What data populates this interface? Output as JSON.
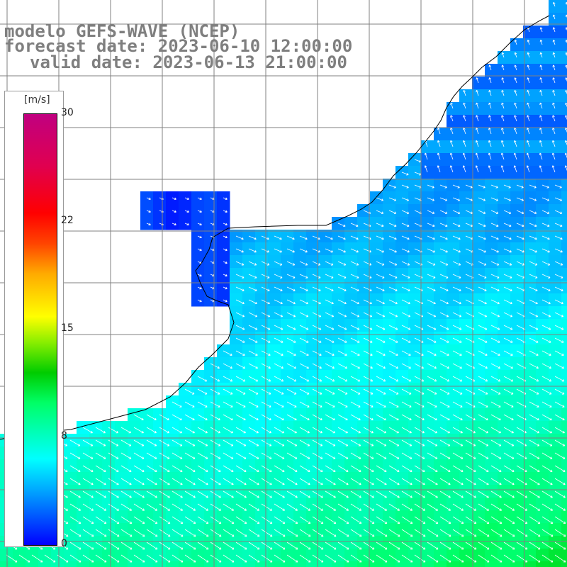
{
  "title": {
    "line1": "modelo GEFS-WAVE (NCEP)",
    "line2": "forecast date: 2023-06-10 12:00:00",
    "line3": "valid date: 2023-06-13 21:00:00"
  },
  "colorbar": {
    "unit": "[m/s]",
    "ticks": [
      "30",
      "22",
      "15",
      "8",
      "0"
    ],
    "tick_values": [
      30,
      22,
      15,
      8,
      0
    ],
    "range": [
      0,
      30
    ],
    "colors": [
      "#0000ff",
      "#00aaff",
      "#00ffff",
      "#00ff66",
      "#00cc00",
      "#ffff00",
      "#ff8800",
      "#ff0000",
      "#c00080"
    ]
  },
  "map": {
    "field": "wind speed",
    "land_color": "#ffffff",
    "grid_color": "#808080",
    "coastline_color": "#000000",
    "arrow_color": "#ffffff",
    "vector_field": "wind arrows pointing toward the east-southeast over ocean; weaker flow near coast"
  }
}
